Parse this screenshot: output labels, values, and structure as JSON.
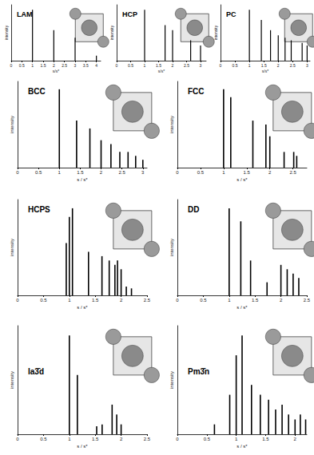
{
  "chart_data": [
    {
      "type": "bar",
      "title": "LAM",
      "x_label": "s/s*",
      "y_label": "intensity",
      "color": "#000000",
      "tick_labels": "x",
      "x": [
        1,
        2,
        3,
        4
      ],
      "values": [
        1.0,
        0.6,
        0.45,
        0.1
      ],
      "xlim": [
        0,
        4.2
      ],
      "xticks": [
        0,
        0.5,
        1,
        1.5,
        2,
        2.5,
        3,
        3.5,
        4
      ],
      "ylim": [
        0,
        1.1
      ]
    },
    {
      "type": "bar",
      "title": "HCP",
      "x_label": "s/s*",
      "y_label": "intensity",
      "color": "#000000",
      "tick_labels": "x",
      "x": [
        1,
        1.732,
        2,
        2.646,
        3
      ],
      "values": [
        1.0,
        0.7,
        0.6,
        0.4,
        0.3
      ],
      "xlim": [
        0,
        3.2
      ],
      "xticks": [
        0,
        0.5,
        1,
        1.5,
        2,
        2.5,
        3
      ],
      "ylim": [
        0,
        1.1
      ]
    },
    {
      "type": "bar",
      "title": "PC",
      "x_label": "s/s*",
      "y_label": "intensity",
      "color": "#000000",
      "tick_labels": "x",
      "x": [
        1,
        1.414,
        1.732,
        2,
        2.236,
        2.449,
        2.828,
        3
      ],
      "values": [
        1.0,
        0.8,
        0.6,
        0.5,
        0.45,
        0.4,
        0.35,
        0.3
      ],
      "xlim": [
        0,
        3.1
      ],
      "xticks": [
        0,
        0.5,
        1,
        1.5,
        2,
        2.5,
        3
      ],
      "ylim": [
        0,
        1.1
      ]
    },
    {
      "type": "bar",
      "title": "BCC",
      "x_label": "s / s*",
      "y_label": "intensity",
      "color": "#000000",
      "tick_labels": "x",
      "x": [
        1,
        1.414,
        1.732,
        2,
        2.236,
        2.449,
        2.646,
        2.828,
        3
      ],
      "values": [
        1.0,
        0.6,
        0.5,
        0.35,
        0.3,
        0.2,
        0.2,
        0.15,
        0.1
      ],
      "xlim": [
        0,
        3.1
      ],
      "xticks": [
        0,
        0.5,
        1,
        1.5,
        2,
        2.5,
        3
      ],
      "ylim": [
        0,
        1.1
      ]
    },
    {
      "type": "bar",
      "title": "FCC",
      "x_label": "s / s*",
      "y_label": "intensity",
      "color": "#000000",
      "tick_labels": "x",
      "x": [
        1,
        1.155,
        1.633,
        1.915,
        2,
        2.309,
        2.517,
        2.582
      ],
      "values": [
        1.0,
        0.9,
        0.6,
        0.55,
        0.4,
        0.2,
        0.2,
        0.15
      ],
      "xlim": [
        0,
        2.8
      ],
      "xticks": [
        0,
        0.5,
        1,
        1.5,
        2,
        2.5
      ],
      "ylim": [
        0,
        1.1
      ]
    },
    {
      "type": "bar",
      "title": "HCPS",
      "x_label": "s / s*",
      "y_label": "intensity",
      "color": "#000000",
      "tick_labels": "x",
      "x": [
        0.94,
        1.0,
        1.06,
        1.37,
        1.63,
        1.77,
        1.88,
        1.93,
        2.0,
        2.1,
        2.2
      ],
      "values": [
        0.6,
        0.9,
        1.0,
        0.5,
        0.45,
        0.4,
        0.35,
        0.4,
        0.3,
        0.1,
        0.08
      ],
      "xlim": [
        0,
        2.5
      ],
      "xticks": [
        0,
        0.5,
        1,
        1.5,
        2,
        2.5
      ],
      "ylim": [
        0,
        1.1
      ]
    },
    {
      "type": "bar",
      "title": "DD",
      "x_label": "s / s*",
      "y_label": "intensity",
      "color": "#000000",
      "tick_labels": "x",
      "x": [
        1,
        1.225,
        1.414,
        1.732,
        2,
        2.121,
        2.236,
        2.345
      ],
      "values": [
        1.0,
        0.85,
        0.4,
        0.15,
        0.35,
        0.3,
        0.25,
        0.2
      ],
      "xlim": [
        0,
        2.5
      ],
      "xticks": [
        0,
        0.5,
        1,
        1.5,
        2,
        2.5
      ],
      "ylim": [
        0,
        1.1
      ]
    },
    {
      "type": "bar",
      "title": "Ia3̄d",
      "x_label": "s / s*",
      "y_label": "intensity",
      "color": "#000000",
      "tick_labels": "x",
      "x": [
        1,
        1.155,
        1.528,
        1.633,
        1.826,
        1.915,
        2.0
      ],
      "values": [
        1.0,
        0.6,
        0.08,
        0.1,
        0.3,
        0.2,
        0.1
      ],
      "xlim": [
        0,
        2.5
      ],
      "xticks": [
        0,
        0.5,
        1,
        1.5,
        2,
        2.5
      ],
      "ylim": [
        0,
        1.1
      ]
    },
    {
      "type": "bar",
      "title": "Pm3̄n",
      "x_label": "s / s*",
      "y_label": "intensity",
      "color": "#000000",
      "tick_labels": "x",
      "x": [
        0.63,
        0.89,
        1.0,
        1.1,
        1.26,
        1.41,
        1.55,
        1.67,
        1.78,
        1.89,
        2.0,
        2.09,
        2.18
      ],
      "values": [
        0.1,
        0.4,
        0.8,
        1.0,
        0.5,
        0.4,
        0.35,
        0.25,
        0.3,
        0.2,
        0.15,
        0.2,
        0.15
      ],
      "xlim": [
        0,
        2.2
      ],
      "xticks": [
        0,
        0.5,
        1,
        1.5,
        2
      ],
      "ylim": [
        0,
        1.1
      ]
    }
  ]
}
